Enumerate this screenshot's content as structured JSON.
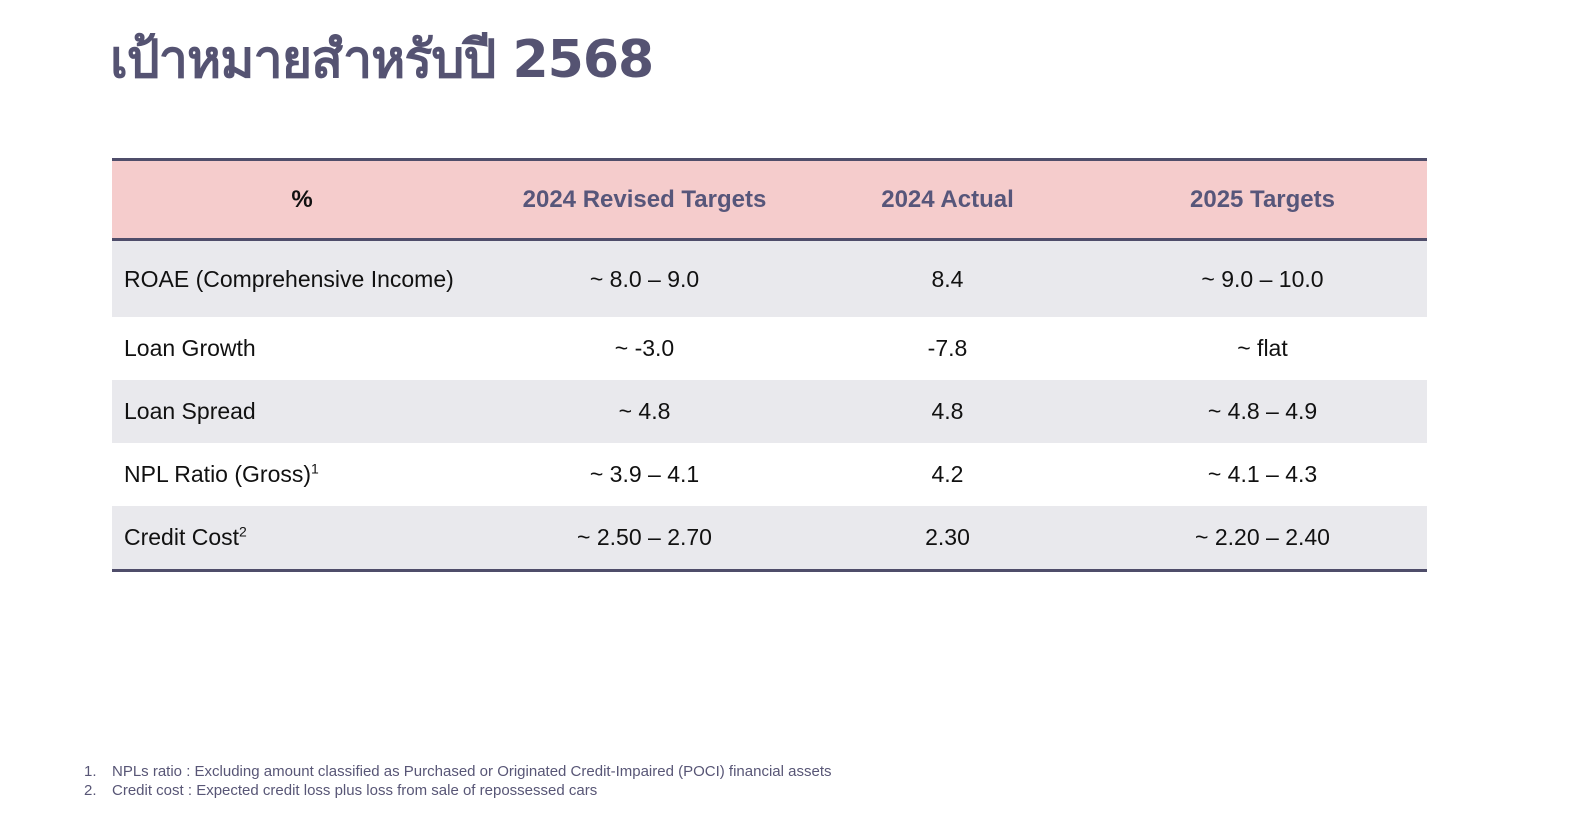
{
  "title": "เป้าหมายสำหรับปี 2568",
  "table": {
    "headers": [
      "%",
      "2024 Revised Targets",
      "2024 Actual",
      "2025 Targets"
    ],
    "rows": [
      {
        "metric": "ROAE (Comprehensive Income)",
        "sup": "",
        "revised": "~ 8.0 – 9.0",
        "actual": "8.4",
        "target": "~ 9.0 – 10.0"
      },
      {
        "metric": "Loan Growth",
        "sup": "",
        "revised": "~ -3.0",
        "actual": "-7.8",
        "target": "~ flat"
      },
      {
        "metric": "Loan Spread",
        "sup": "",
        "revised": "~ 4.8",
        "actual": "4.8",
        "target": "~ 4.8 – 4.9"
      },
      {
        "metric": "NPL Ratio (Gross)",
        "sup": "1",
        "revised": "~ 3.9 – 4.1",
        "actual": "4.2",
        "target": "~ 4.1 – 4.3"
      },
      {
        "metric": "Credit Cost",
        "sup": "2",
        "revised": "~ 2.50 – 2.70",
        "actual": "2.30",
        "target": "~ 2.20 – 2.40"
      }
    ]
  },
  "footnotes": [
    {
      "num": "1.",
      "text": "NPLs ratio : Excluding amount classified as Purchased or Originated Credit-Impaired (POCI) financial assets"
    },
    {
      "num": "2.",
      "text": "Credit cost : Expected credit loss plus loss from sale of repossessed cars"
    }
  ],
  "colors": {
    "title": "#555372",
    "header_bg": "#f5cccc",
    "header_text": "#57567a",
    "rule": "#4f4d6a",
    "row_shade": "#e9e9ed"
  }
}
